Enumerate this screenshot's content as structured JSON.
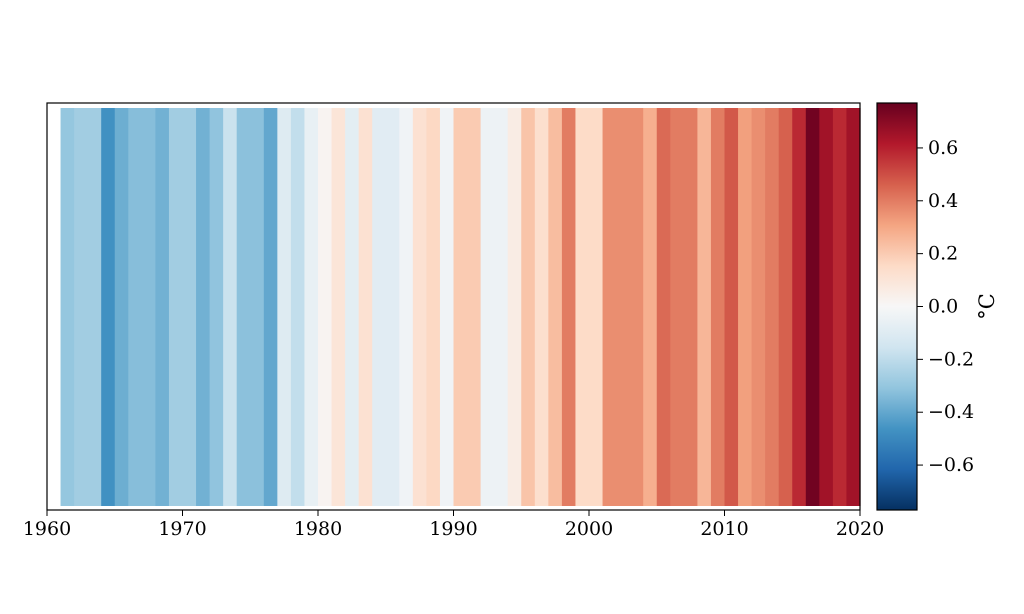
{
  "chart_data": {
    "type": "heatmap",
    "title": "",
    "xlabel": "",
    "ylabel": "",
    "x": [
      1961,
      1962,
      1963,
      1964,
      1965,
      1966,
      1967,
      1968,
      1969,
      1970,
      1971,
      1972,
      1973,
      1974,
      1975,
      1976,
      1977,
      1978,
      1979,
      1980,
      1981,
      1982,
      1983,
      1984,
      1985,
      1986,
      1987,
      1988,
      1989,
      1990,
      1991,
      1992,
      1993,
      1994,
      1995,
      1996,
      1997,
      1998,
      1999,
      2000,
      2001,
      2002,
      2003,
      2004,
      2005,
      2006,
      2007,
      2008,
      2009,
      2010,
      2011,
      2012,
      2013,
      2014,
      2015,
      2016,
      2017,
      2018,
      2019
    ],
    "values": [
      -0.3,
      -0.27,
      -0.27,
      -0.47,
      -0.38,
      -0.33,
      -0.33,
      -0.37,
      -0.27,
      -0.27,
      -0.37,
      -0.31,
      -0.17,
      -0.32,
      -0.32,
      -0.4,
      -0.1,
      -0.19,
      -0.06,
      0.02,
      0.1,
      -0.08,
      0.12,
      -0.09,
      -0.09,
      -0.03,
      0.12,
      0.16,
      -0.03,
      0.2,
      0.2,
      -0.04,
      -0.04,
      0.06,
      0.22,
      0.13,
      0.24,
      0.4,
      0.15,
      0.15,
      0.36,
      0.36,
      0.36,
      0.28,
      0.44,
      0.4,
      0.4,
      0.26,
      0.4,
      0.48,
      0.32,
      0.36,
      0.4,
      0.46,
      0.58,
      0.75,
      0.65,
      0.58,
      0.65
    ],
    "xlim": [
      1960,
      2020
    ],
    "xticks": [
      "1960",
      "1970",
      "1980",
      "1990",
      "2000",
      "2010",
      "2020"
    ],
    "colorbar": {
      "label": "°C",
      "range": [
        -0.77,
        0.77
      ],
      "colormap": "RdBu_r",
      "ticks": [
        "−0.6",
        "−0.4",
        "−0.2",
        "0.0",
        "0.2",
        "0.4",
        "0.6"
      ]
    },
    "colors": {
      "stops": [
        "#053061",
        "#2166ac",
        "#4393c3",
        "#92c5de",
        "#d1e5f0",
        "#f7f7f7",
        "#fddbc7",
        "#f4a582",
        "#d6604d",
        "#b2182b",
        "#67001f"
      ]
    }
  }
}
